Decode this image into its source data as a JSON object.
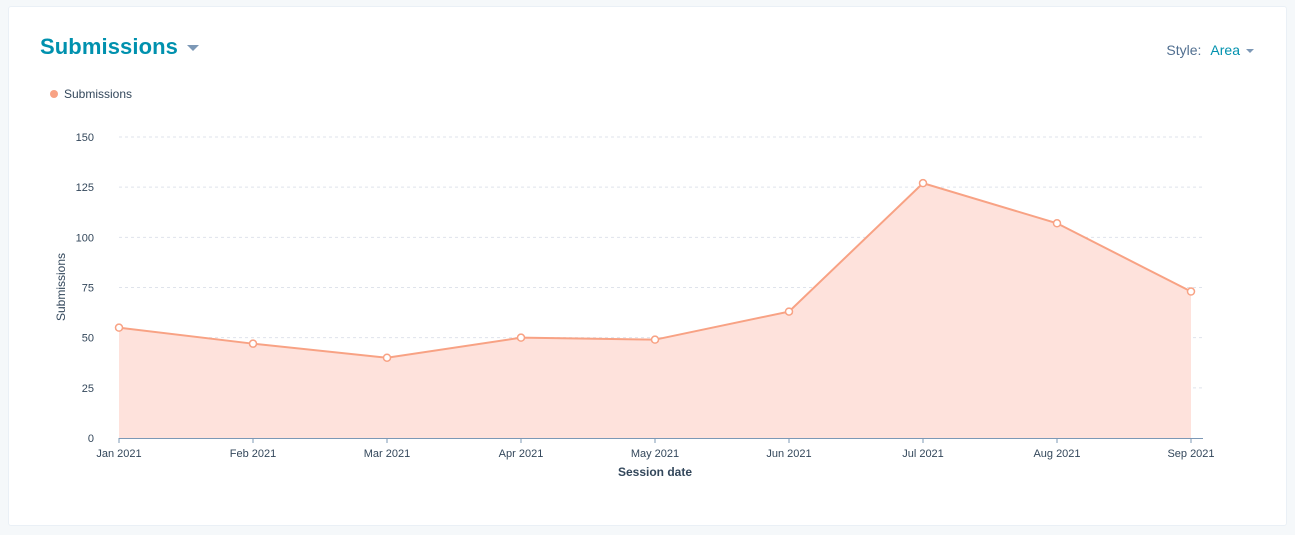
{
  "header": {
    "title": "Submissions",
    "style_label": "Style:",
    "style_value": "Area"
  },
  "colors": {
    "series_line": "#f8a284",
    "series_fill": "#fee2dc",
    "accent": "#0091ae"
  },
  "chart_data": {
    "type": "area",
    "title": "Submissions",
    "xlabel": "Session date",
    "ylabel": "Submissions",
    "ylim": [
      0,
      150
    ],
    "yticks": [
      0,
      25,
      50,
      75,
      100,
      125,
      150
    ],
    "grid": true,
    "legend_position": "top-left",
    "categories": [
      "Jan 2021",
      "Feb 2021",
      "Mar 2021",
      "Apr 2021",
      "May 2021",
      "Jun 2021",
      "Jul 2021",
      "Aug 2021",
      "Sep 2021"
    ],
    "series": [
      {
        "name": "Submissions",
        "values": [
          55,
          47,
          40,
          50,
          49,
          63,
          127,
          107,
          73
        ]
      }
    ]
  }
}
